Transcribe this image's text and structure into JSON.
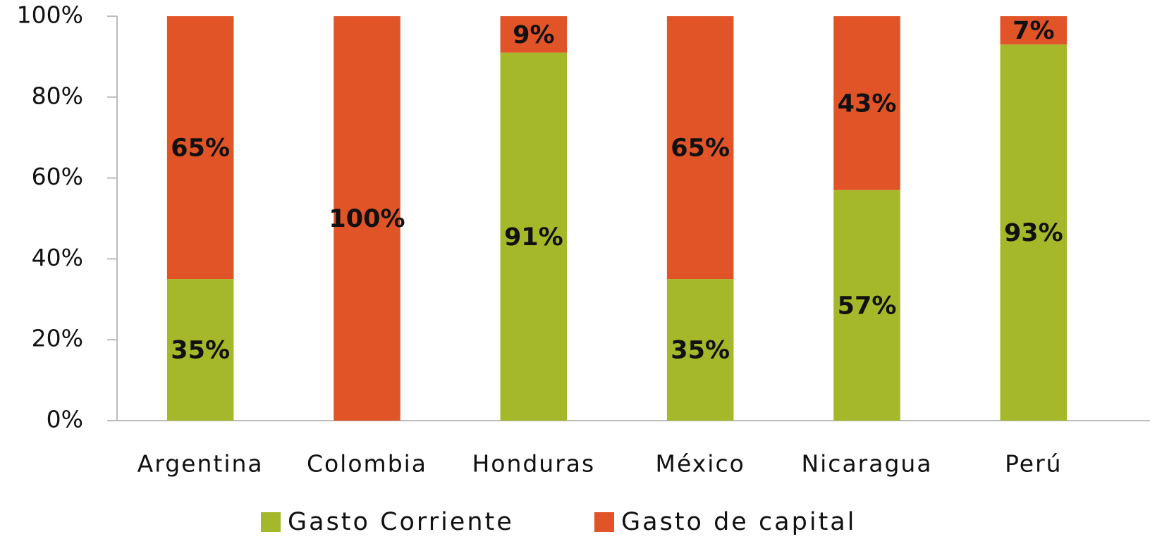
{
  "chart_data": {
    "type": "stacked_bar",
    "categories": [
      "Argentina",
      "Colombia",
      "Honduras",
      "México",
      "Nicaragua",
      "Perú"
    ],
    "series": [
      {
        "name": "Gasto Corriente",
        "color": "#a5b82a",
        "values": [
          35,
          0,
          91,
          35,
          57,
          93
        ],
        "value_labels": [
          "35%",
          null,
          "91%",
          "35%",
          "57%",
          "93%"
        ]
      },
      {
        "name": "Gasto de capital",
        "color": "#e05428",
        "values": [
          65,
          100,
          9,
          65,
          43,
          7
        ],
        "value_labels": [
          "65%",
          "100%",
          "9%",
          "65%",
          "43%",
          "7%"
        ]
      }
    ],
    "ylim": [
      0,
      100
    ],
    "yticks": [
      {
        "value": 0,
        "label": "0%"
      },
      {
        "value": 20,
        "label": "20%"
      },
      {
        "value": 40,
        "label": "40%"
      },
      {
        "value": 60,
        "label": "60%"
      },
      {
        "value": 80,
        "label": "80%"
      },
      {
        "value": 100,
        "label": "100%"
      }
    ],
    "legend": "bottom"
  }
}
